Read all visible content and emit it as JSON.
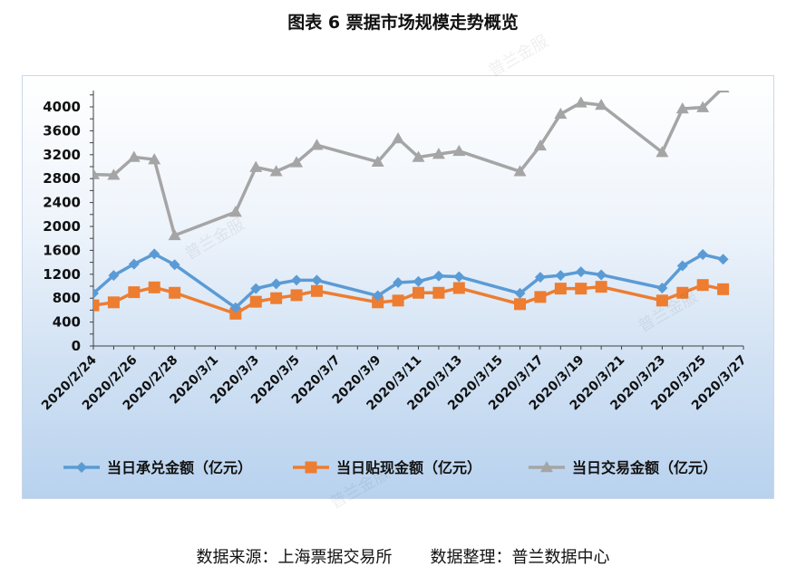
{
  "title": "图表 6  票据市场规模走势概览",
  "source_text": "数据来源：上海票据交易所",
  "compiler_text": "数据整理：普兰数据中心",
  "watermark": "普兰金服",
  "colors": {
    "series1": "#5b9bd5",
    "series2": "#ed7d31",
    "series3": "#a5a5a5",
    "axis": "#404040",
    "text": "#111111"
  },
  "chart_data": {
    "type": "line",
    "title": "",
    "xlabel": "",
    "ylabel": "",
    "ylim": [
      0,
      4000
    ],
    "y_ticks": [
      0,
      400,
      800,
      1200,
      1600,
      2000,
      2400,
      2800,
      3200,
      3600,
      4000
    ],
    "x_range": [
      "2020/2/24",
      "2020/3/27"
    ],
    "x_tick_labels": [
      "2020/2/24",
      "2020/2/26",
      "2020/2/28",
      "2020/3/1",
      "2020/3/3",
      "2020/3/5",
      "2020/3/7",
      "2020/3/9",
      "2020/3/11",
      "2020/3/13",
      "2020/3/15",
      "2020/3/17",
      "2020/3/19",
      "2020/3/21",
      "2020/3/23",
      "2020/3/25",
      "2020/3/27"
    ],
    "x": [
      "2020/2/24",
      "2020/2/25",
      "2020/2/26",
      "2020/2/27",
      "2020/2/28",
      "2020/3/2",
      "2020/3/3",
      "2020/3/4",
      "2020/3/5",
      "2020/3/6",
      "2020/3/9",
      "2020/3/10",
      "2020/3/11",
      "2020/3/12",
      "2020/3/13",
      "2020/3/16",
      "2020/3/17",
      "2020/3/18",
      "2020/3/19",
      "2020/3/20",
      "2020/3/23",
      "2020/3/24",
      "2020/3/25",
      "2020/3/26"
    ],
    "grid": false,
    "legend_position": "bottom",
    "series": [
      {
        "name": "当日承兑金额（亿元）",
        "marker": "diamond",
        "values": [
          880,
          1180,
          1370,
          1540,
          1360,
          640,
          960,
          1040,
          1100,
          1100,
          840,
          1060,
          1080,
          1170,
          1160,
          880,
          1150,
          1180,
          1240,
          1190,
          970,
          1340,
          1530,
          1450
        ]
      },
      {
        "name": "当日贴现金额（亿元）",
        "marker": "square",
        "values": [
          680,
          730,
          900,
          980,
          890,
          540,
          740,
          800,
          850,
          920,
          730,
          760,
          890,
          890,
          970,
          700,
          820,
          960,
          960,
          990,
          760,
          890,
          1020,
          950
        ]
      },
      {
        "name": "当日交易金额（亿元）",
        "marker": "triangle",
        "values": [
          2870,
          2860,
          3160,
          3120,
          1850,
          2240,
          2990,
          2920,
          3070,
          3360,
          3080,
          3470,
          3160,
          3210,
          3260,
          2920,
          3350,
          3880,
          4070,
          4030,
          3240,
          3970,
          3990,
          4320
        ]
      }
    ]
  }
}
